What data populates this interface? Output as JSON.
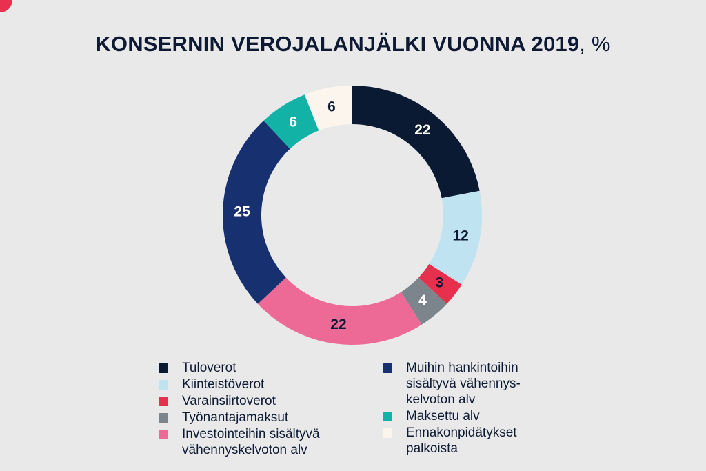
{
  "title": {
    "main": "KONSERNIN VEROJALANJÄLKI  VUONNA 2019",
    "unit": ", %"
  },
  "chart_data": {
    "type": "pie",
    "donut": true,
    "categories": [
      "Tuloverot",
      "Kiinteistöverot",
      "Varainsiirtoverot",
      "Työnantajamaksut",
      "Investointeihin sisältyvä vähennyskelvoton alv",
      "Muihin hankintoihin sisältyvä vähennyskelvoton alv",
      "Maksettu alv",
      "Ennakonpidätykset palkoista"
    ],
    "values": [
      22,
      12,
      3,
      4,
      22,
      25,
      6,
      6
    ],
    "value_labels": [
      "22",
      "12",
      "3",
      "4",
      "22",
      "25",
      "6",
      "6"
    ],
    "colors": [
      "#0b1a33",
      "#bfe3f0",
      "#e6304d",
      "#7c848c",
      "#ec6a95",
      "#173070",
      "#12b3a6",
      "#fcf5ee"
    ],
    "label_colors": [
      "#ffffff",
      "#0e1a33",
      "#0e1a33",
      "#ffffff",
      "#0e1a33",
      "#ffffff",
      "#ffffff",
      "#0e1a33"
    ],
    "legend_position": "bottom"
  },
  "legend": {
    "left": [
      {
        "text": "Tuloverot",
        "color": "#0b1a33"
      },
      {
        "text": "Kiinteistöverot",
        "color": "#bfe3f0"
      },
      {
        "text": "Varainsiirtoverot",
        "color": "#e6304d"
      },
      {
        "text": "Työnantajamaksut",
        "color": "#7c848c"
      },
      {
        "text": "Investointeihin sisältyvä\nvähennyskelvoton alv",
        "color": "#ec6a95"
      }
    ],
    "right": [
      {
        "text": "Muihin hankintoihin\nsisältyvä vähennys-\nkelvoton alv",
        "color": "#173070"
      },
      {
        "text": "Maksettu alv",
        "color": "#12b3a6"
      },
      {
        "text": "Ennakonpidätykset\npalkoista",
        "color": "#fcf5ee"
      }
    ]
  }
}
